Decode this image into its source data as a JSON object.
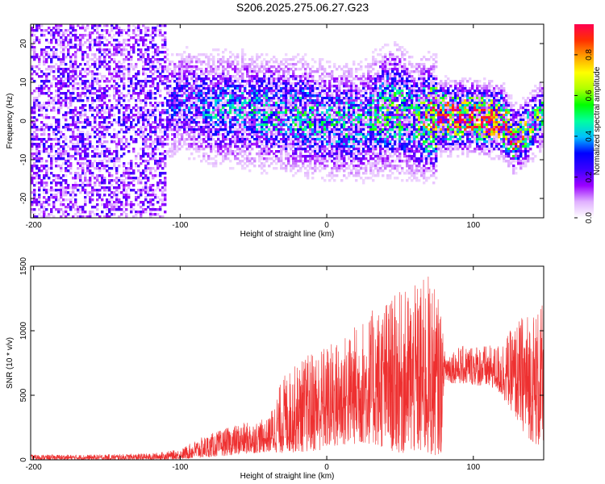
{
  "title": "S206.2025.275.06.27.G23",
  "chart_data": [
    {
      "type": "heatmap",
      "xlabel": "Height of straight line (km)",
      "ylabel": "Frequency (Hz)",
      "xlim": [
        -202,
        148
      ],
      "ylim": [
        -25,
        25
      ],
      "xticks": [
        -200,
        -100,
        0,
        100
      ],
      "yticks": [
        -20,
        -10,
        0,
        10,
        20
      ],
      "colorbar": {
        "label": "Normalized spectral amplitude",
        "range": [
          0,
          0.95
        ],
        "ticks": [
          0,
          0.2,
          0.4,
          0.6,
          0.8
        ],
        "colors": [
          "#ffffff",
          "#e0b0ff",
          "#9a00ff",
          "#3b00ff",
          "#0000ff",
          "#00c0ff",
          "#00ffa0",
          "#00ff00",
          "#b0ff00",
          "#ffff00",
          "#ffa000",
          "#ff3000",
          "#ff0050"
        ]
      },
      "ridge": [
        {
          "x": -200,
          "freq": 0,
          "amp": 0.15
        },
        {
          "x": -120,
          "freq": 2,
          "amp": 0.2
        },
        {
          "x": -100,
          "freq": 5,
          "amp": 0.22
        },
        {
          "x": -80,
          "freq": 3,
          "amp": 0.28
        },
        {
          "x": -60,
          "freq": 3,
          "amp": 0.3
        },
        {
          "x": -40,
          "freq": 2,
          "amp": 0.32
        },
        {
          "x": -20,
          "freq": 1.5,
          "amp": 0.35
        },
        {
          "x": 0,
          "freq": 0,
          "amp": 0.32
        },
        {
          "x": 20,
          "freq": -0.5,
          "amp": 0.33
        },
        {
          "x": 40,
          "freq": 1,
          "amp": 0.35
        },
        {
          "x": 60,
          "freq": 0,
          "amp": 0.35
        },
        {
          "x": 72,
          "freq": 1,
          "amp": 0.6
        },
        {
          "x": 80,
          "freq": 1,
          "amp": 0.8
        },
        {
          "x": 100,
          "freq": 1,
          "amp": 0.75
        },
        {
          "x": 120,
          "freq": 0,
          "amp": 0.8
        },
        {
          "x": 128,
          "freq": -5,
          "amp": 0.6
        },
        {
          "x": 135,
          "freq": -3,
          "amp": 0.5
        },
        {
          "x": 148,
          "freq": 2,
          "amp": 0.4
        }
      ]
    },
    {
      "type": "line",
      "xlabel": "Height of straight line (km)",
      "ylabel": "SNR (10 * v/v)",
      "xlim": [
        -202,
        148
      ],
      "ylim": [
        0,
        1500
      ],
      "xticks": [
        -200,
        -100,
        0,
        100
      ],
      "yticks": [
        0,
        500,
        1000,
        1500
      ],
      "series": [
        {
          "name": "SNR",
          "color": "#ee3030",
          "envelope": [
            {
              "x": -202,
              "low": 0,
              "high": 40
            },
            {
              "x": -160,
              "low": 0,
              "high": 40
            },
            {
              "x": -120,
              "low": 0,
              "high": 50
            },
            {
              "x": -100,
              "low": 5,
              "high": 80
            },
            {
              "x": -90,
              "low": 10,
              "high": 150
            },
            {
              "x": -80,
              "low": 20,
              "high": 200
            },
            {
              "x": -60,
              "low": 40,
              "high": 280
            },
            {
              "x": -40,
              "low": 60,
              "high": 320
            },
            {
              "x": -30,
              "low": 50,
              "high": 650
            },
            {
              "x": -20,
              "low": 60,
              "high": 750
            },
            {
              "x": -10,
              "low": 60,
              "high": 850
            },
            {
              "x": 0,
              "low": 80,
              "high": 900
            },
            {
              "x": 10,
              "low": 100,
              "high": 950
            },
            {
              "x": 20,
              "low": 120,
              "high": 1050
            },
            {
              "x": 30,
              "low": 120,
              "high": 1150
            },
            {
              "x": 40,
              "low": 80,
              "high": 1250
            },
            {
              "x": 50,
              "low": 50,
              "high": 1300
            },
            {
              "x": 60,
              "low": 40,
              "high": 1350
            },
            {
              "x": 70,
              "low": 20,
              "high": 1450
            },
            {
              "x": 78,
              "low": 50,
              "high": 1200
            },
            {
              "x": 80,
              "low": 600,
              "high": 850
            },
            {
              "x": 100,
              "low": 580,
              "high": 900
            },
            {
              "x": 115,
              "low": 550,
              "high": 880
            },
            {
              "x": 125,
              "low": 400,
              "high": 1000
            },
            {
              "x": 135,
              "low": 200,
              "high": 1150
            },
            {
              "x": 148,
              "low": 50,
              "high": 1200
            }
          ]
        }
      ]
    }
  ]
}
